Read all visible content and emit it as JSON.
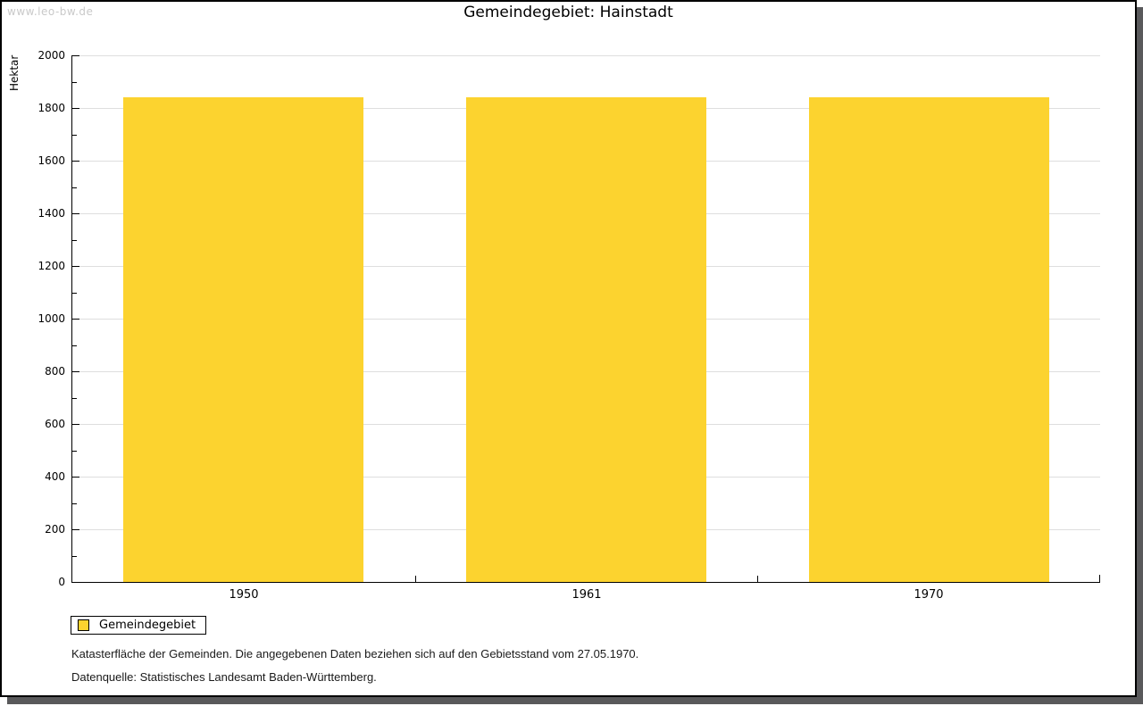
{
  "header": {
    "watermark": "www.leo-bw.de",
    "title": "Gemeindegebiet: Hainstadt"
  },
  "chart_data": {
    "type": "bar",
    "title": "Gemeindegebiet: Hainstadt",
    "ylabel": "Hektar",
    "ylim": [
      0,
      2000
    ],
    "y_major_step": 200,
    "y_minor_step": 100,
    "grid": true,
    "categories": [
      "1950",
      "1961",
      "1970"
    ],
    "series": [
      {
        "name": "Gemeindegebiet",
        "color": "#FCD32F",
        "values": [
          1840,
          1840,
          1840
        ]
      }
    ],
    "legend_position": "bottom-left",
    "bar_width_fraction": 0.7
  },
  "legend": {
    "label": "Gemeindegebiet",
    "swatch_color": "#FCD32F"
  },
  "footer": {
    "note": "Katasterfläche der Gemeinden. Die angegebenen Daten beziehen sich auf den Gebietsstand vom 27.05.1970.",
    "source": "Datenquelle: Statistisches Landesamt Baden-Württemberg."
  },
  "colors": {
    "bar": "#FCD32F",
    "gridline": "#dedede",
    "axis": "#000000",
    "watermark": "#c9c9c9",
    "shadow": "#59595b"
  }
}
